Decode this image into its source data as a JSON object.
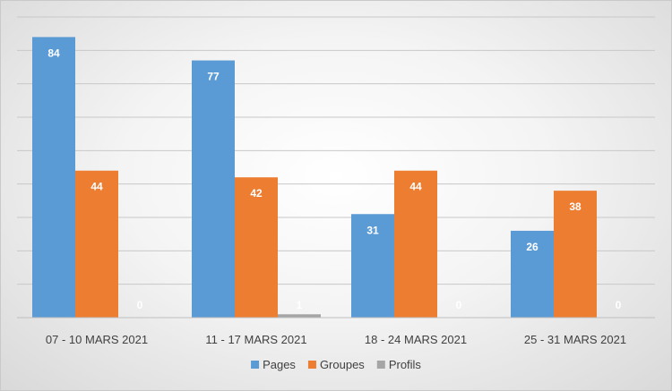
{
  "chart_data": {
    "type": "bar",
    "categories": [
      "07 - 10 MARS 2021",
      "11 - 17 MARS 2021",
      "18 - 24 MARS 2021",
      "25 - 31 MARS 2021"
    ],
    "series": [
      {
        "name": "Pages",
        "values": [
          84,
          77,
          31,
          26
        ],
        "color": "#5b9bd5"
      },
      {
        "name": "Groupes",
        "values": [
          44,
          42,
          44,
          38
        ],
        "color": "#ed7d31"
      },
      {
        "name": "Profils",
        "values": [
          0,
          1,
          0,
          0
        ],
        "color": "#a5a5a5"
      }
    ],
    "ylim": [
      0,
      90
    ],
    "y_gridline_step": 10,
    "grid": true,
    "y_tick_labels_shown": false,
    "data_labels": true,
    "legend_position": "bottom"
  }
}
